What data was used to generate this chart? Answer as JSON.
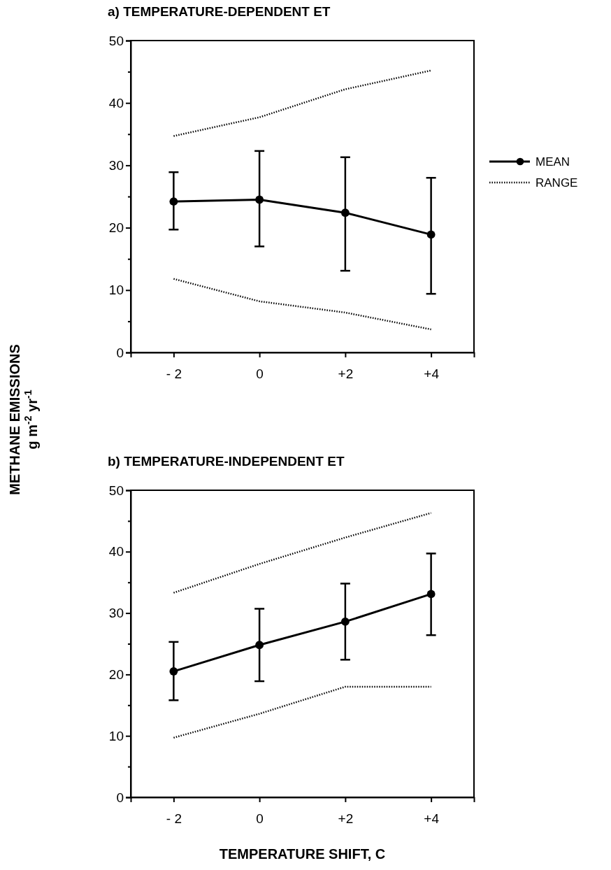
{
  "chart_data": [
    {
      "type": "line",
      "title": "a)  TEMPERATURE-DEPENDENT ET",
      "ylabel": "METHANE EMISSIONS\ng m$^{-2}$ yr$^{-1}$",
      "x": [
        -2,
        0,
        2,
        4
      ],
      "xlim": [
        -3,
        5
      ],
      "xticks": [
        {
          "value": -2,
          "label": "- 2"
        },
        0,
        {
          "value": 2,
          "label": "+2"
        },
        {
          "value": 4,
          "label": "+4"
        }
      ],
      "ylim": [
        0,
        50
      ],
      "yticks": [
        0,
        {
          "value": 5,
          "label": null
        },
        10,
        {
          "value": 15,
          "label": null
        },
        20,
        {
          "value": 25,
          "label": null
        },
        30,
        {
          "value": 35,
          "label": null
        },
        40,
        {
          "value": 45,
          "label": null
        },
        50
      ],
      "legend": "right",
      "grid": false,
      "series": [
        {
          "name": "MEAN",
          "type": "line",
          "color": "#000000",
          "marker": "circle",
          "line_style": "solid",
          "values": [
            24.2,
            24.5,
            22.4,
            18.9
          ],
          "errors": [
            [
              19.7,
              28.9
            ],
            [
              17,
              32.3
            ],
            [
              13.1,
              31.3
            ],
            [
              9.4,
              28
            ]
          ]
        },
        {
          "name": "RANGE",
          "type": "line",
          "color": "#000000",
          "marker": "none",
          "line_style": "dotted",
          "values": [
            34.7,
            37.7,
            42.2,
            45.2
          ]
        },
        {
          "type": "line",
          "color": "#000000",
          "marker": "none",
          "line_style": "dotted",
          "values": [
            11.8,
            8.2,
            6.4,
            3.7
          ]
        }
      ]
    },
    {
      "type": "line",
      "title": "b)  TEMPERATURE-INDEPENDENT ET",
      "xlabel": "TEMPERATURE SHIFT, C",
      "x": [
        -2,
        0,
        2,
        4
      ],
      "xlim": [
        -3,
        5
      ],
      "xticks": [
        {
          "value": -2,
          "label": "- 2"
        },
        0,
        {
          "value": 2,
          "label": "+2"
        },
        {
          "value": 4,
          "label": "+4"
        }
      ],
      "ylim": [
        0,
        50
      ],
      "yticks": [
        0,
        {
          "value": 5,
          "label": null
        },
        10,
        {
          "value": 15,
          "label": null
        },
        20,
        {
          "value": 25,
          "label": null
        },
        30,
        {
          "value": 35,
          "label": null
        },
        40,
        {
          "value": 45,
          "label": null
        },
        50
      ],
      "legend": false,
      "grid": false,
      "series": [
        {
          "type": "line",
          "color": "#000000",
          "marker": "circle",
          "line_style": "solid",
          "values": [
            20.5,
            24.8,
            28.6,
            33.1
          ],
          "errors": [
            [
              15.8,
              25.3
            ],
            [
              18.9,
              30.7
            ],
            [
              22.4,
              34.8
            ],
            [
              26.4,
              39.7
            ]
          ]
        },
        {
          "type": "line",
          "color": "#000000",
          "marker": "none",
          "line_style": "dotted",
          "values": [
            33.3,
            38,
            42.3,
            46.3
          ]
        },
        {
          "type": "line",
          "color": "#000000",
          "marker": "none",
          "line_style": "dotted",
          "values": [
            9.7,
            13.6,
            18,
            18
          ]
        }
      ]
    }
  ]
}
